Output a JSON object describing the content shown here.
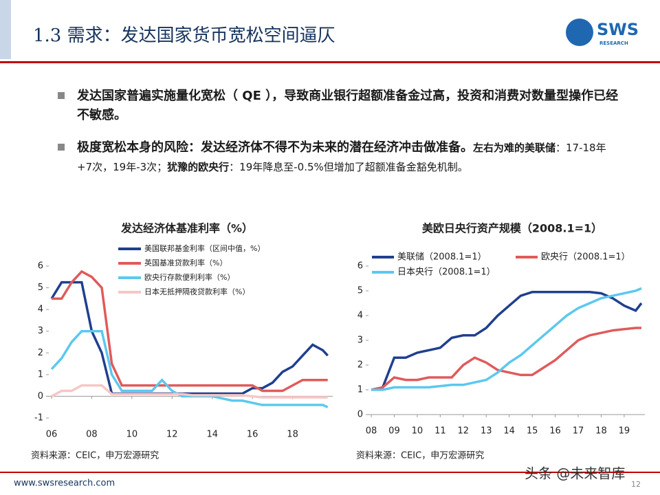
{
  "header": {
    "title": "1.3 需求：发达国家货币宽松空间逼仄",
    "logo": "SWS",
    "logo_sub": "RESEARCH"
  },
  "bullets": {
    "first": "发达国家普遍实施量化宽松（ QE ），导致商业银行超额准备金过高，投资和消费对数量型操作已经不敏感。",
    "second": [
      "极度宽松本身的风险：发达经济体不得不为未来的潜在经济冲击做准备。",
      "左右为难的美联储",
      "：17-18年+7次，19年-3次；",
      "犹豫的欧央行",
      "：19年降息至-0.5%但增加了超额准备金豁免机制。"
    ]
  },
  "chart_data": [
    {
      "type": "line",
      "title": "发达经济体基准利率（%）",
      "source": "资料来源：CEIC，申万宏源研究",
      "x": [
        2006,
        2006.5,
        2007,
        2007.5,
        2008,
        2008.5,
        2009,
        2009.5,
        2010,
        2010.5,
        2011,
        2011.5,
        2012,
        2012.5,
        2013,
        2013.5,
        2014,
        2014.5,
        2015,
        2015.5,
        2016,
        2016.5,
        2017,
        2017.5,
        2018,
        2018.5,
        2019,
        2019.5,
        2019.75
      ],
      "series": [
        {
          "name": "美国联邦基金利率（区间中值，%）",
          "color": "#1f3f8f",
          "values": [
            4.5,
            5.25,
            5.25,
            5.25,
            3.0,
            2.0,
            0.125,
            0.125,
            0.125,
            0.125,
            0.125,
            0.125,
            0.125,
            0.125,
            0.125,
            0.125,
            0.125,
            0.125,
            0.125,
            0.125,
            0.375,
            0.375,
            0.625,
            1.125,
            1.375,
            1.875,
            2.375,
            2.125,
            1.875
          ]
        },
        {
          "name": "英国基准贷款利率（%）",
          "color": "#e05a5a",
          "values": [
            4.5,
            4.5,
            5.25,
            5.75,
            5.5,
            5.0,
            1.5,
            0.5,
            0.5,
            0.5,
            0.5,
            0.5,
            0.5,
            0.5,
            0.5,
            0.5,
            0.5,
            0.5,
            0.5,
            0.5,
            0.5,
            0.25,
            0.25,
            0.25,
            0.5,
            0.75,
            0.75,
            0.75,
            0.75
          ]
        },
        {
          "name": "欧央行存款便利利率（%）",
          "color": "#5bc8ef",
          "values": [
            1.25,
            1.75,
            2.5,
            3.0,
            3.0,
            3.0,
            1.0,
            0.25,
            0.25,
            0.25,
            0.25,
            0.75,
            0.25,
            0,
            0,
            0,
            0,
            -0.1,
            -0.2,
            -0.2,
            -0.3,
            -0.4,
            -0.4,
            -0.4,
            -0.4,
            -0.4,
            -0.4,
            -0.4,
            -0.5
          ]
        },
        {
          "name": "日本无抵押隔夜贷款利率（%）",
          "color": "#f7c6c6",
          "values": [
            0,
            0.25,
            0.25,
            0.5,
            0.5,
            0.5,
            0.1,
            0.1,
            0.1,
            0.1,
            0.1,
            0.1,
            0.1,
            0.1,
            0.05,
            0.05,
            0.05,
            0.05,
            0.05,
            0.05,
            0,
            -0.05,
            -0.05,
            -0.05,
            -0.05,
            -0.05,
            -0.05,
            -0.05,
            -0.05
          ]
        }
      ],
      "xlim": [
        2006,
        2020
      ],
      "xticks": [
        {
          "value": 2006,
          "label": "06"
        },
        {
          "value": 2008,
          "label": "08"
        },
        {
          "value": 2010,
          "label": "10"
        },
        {
          "value": 2012,
          "label": "12"
        },
        {
          "value": 2014,
          "label": "14"
        },
        {
          "value": 2016,
          "label": "16"
        },
        {
          "value": 2018,
          "label": "18"
        }
      ],
      "ylim": [
        -1,
        6
      ],
      "yticks": [
        -1,
        0,
        1,
        2,
        3,
        4,
        5,
        6
      ]
    },
    {
      "type": "line",
      "title": "美欧日央行资产规模（2008.1=1）",
      "source": "资料来源：CEIC，申万宏源研究",
      "x": [
        2008,
        2008.5,
        2009,
        2009.5,
        2010,
        2010.5,
        2011,
        2011.5,
        2012,
        2012.5,
        2013,
        2013.5,
        2014,
        2014.5,
        2015,
        2015.5,
        2016,
        2016.5,
        2017,
        2017.5,
        2018,
        2018.5,
        2019,
        2019.5,
        2019.75
      ],
      "series": [
        {
          "name": "美联储（2008.1=1）",
          "color": "#1f3f8f",
          "values": [
            1,
            1.1,
            2.3,
            2.3,
            2.5,
            2.6,
            2.7,
            3.1,
            3.2,
            3.2,
            3.5,
            4.0,
            4.4,
            4.8,
            4.95,
            4.95,
            4.95,
            4.95,
            4.95,
            4.95,
            4.9,
            4.7,
            4.4,
            4.2,
            4.5
          ]
        },
        {
          "name": "欧央行（2008.1=1）",
          "color": "#e05a5a",
          "values": [
            1,
            1.1,
            1.5,
            1.4,
            1.4,
            1.5,
            1.5,
            1.5,
            2.0,
            2.3,
            2.1,
            1.8,
            1.7,
            1.6,
            1.6,
            1.9,
            2.2,
            2.6,
            3.0,
            3.2,
            3.3,
            3.4,
            3.45,
            3.5,
            3.5
          ]
        },
        {
          "name": "日本央行（2008.1=1）",
          "color": "#5bc8ef",
          "values": [
            1,
            1.0,
            1.1,
            1.1,
            1.1,
            1.1,
            1.15,
            1.2,
            1.2,
            1.3,
            1.4,
            1.7,
            2.1,
            2.4,
            2.8,
            3.2,
            3.6,
            4.0,
            4.3,
            4.5,
            4.7,
            4.8,
            4.9,
            5.0,
            5.1
          ]
        }
      ],
      "xlim": [
        2008,
        2019.9
      ],
      "xticks": [
        {
          "value": 2008,
          "label": "08"
        },
        {
          "value": 2009,
          "label": "09"
        },
        {
          "value": 2010,
          "label": "10"
        },
        {
          "value": 2011,
          "label": "11"
        },
        {
          "value": 2012,
          "label": "12"
        },
        {
          "value": 2013,
          "label": "13"
        },
        {
          "value": 2014,
          "label": "14"
        },
        {
          "value": 2015,
          "label": "15"
        },
        {
          "value": 2016,
          "label": "16"
        },
        {
          "value": 2017,
          "label": "17"
        },
        {
          "value": 2018,
          "label": "18"
        },
        {
          "value": 2019,
          "label": "19"
        }
      ],
      "ylim": [
        0,
        6
      ],
      "yticks": [
        0,
        1,
        2,
        3,
        4,
        5,
        6
      ]
    }
  ],
  "footer": {
    "url": "www.swsresearch.com",
    "page": "12",
    "watermark": "头条 @未来智库"
  }
}
